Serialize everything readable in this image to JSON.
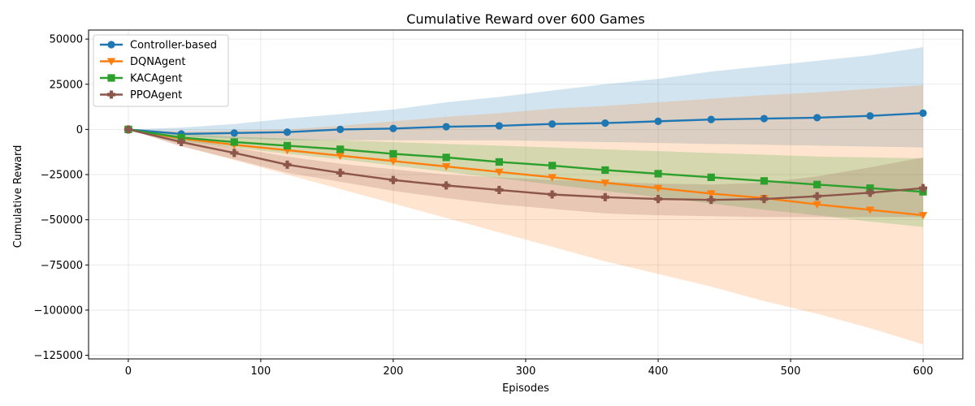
{
  "chart_data": {
    "type": "line",
    "title": "Cumulative Reward over 600 Games",
    "xlabel": "Episodes",
    "ylabel": "Cumulative Reward",
    "xlim": [
      -30,
      630
    ],
    "ylim": [
      -127000,
      55000
    ],
    "xticks": [
      0,
      100,
      200,
      300,
      400,
      500,
      600
    ],
    "xtick_labels": [
      "0",
      "100",
      "200",
      "300",
      "400",
      "500",
      "600"
    ],
    "yticks": [
      -125000,
      -100000,
      -75000,
      -50000,
      -25000,
      0,
      25000,
      50000
    ],
    "ytick_labels": [
      "−125000",
      "−100000",
      "−75000",
      "−50000",
      "−25000",
      "0",
      "25000",
      "50000"
    ],
    "grid": true,
    "legend_position": "top-left",
    "x": [
      0,
      40,
      80,
      120,
      160,
      200,
      240,
      280,
      320,
      360,
      400,
      440,
      480,
      520,
      560,
      600
    ],
    "series": [
      {
        "name": "Controller-based",
        "color": "#1f77b4",
        "marker": "circle",
        "values": [
          0,
          -2500,
          -2000,
          -1500,
          0,
          500,
          1500,
          2000,
          3000,
          3500,
          4500,
          5500,
          6000,
          6500,
          7500,
          9000
        ],
        "upper": [
          0,
          1000,
          3000,
          6000,
          8500,
          11000,
          15000,
          18000,
          21500,
          25000,
          28000,
          32000,
          35000,
          38000,
          41000,
          45500
        ],
        "lower": [
          0,
          -4000,
          -5000,
          -6000,
          -6000,
          -6000,
          -6000,
          -6000,
          -6500,
          -7000,
          -7500,
          -8000,
          -8500,
          -9000,
          -9500,
          -10000
        ]
      },
      {
        "name": "DQNAgent",
        "color": "#ff7f0e",
        "marker": "triangle-down",
        "values": [
          0,
          -5000,
          -8500,
          -11500,
          -14500,
          -17500,
          -20500,
          -23500,
          -26500,
          -29500,
          -32500,
          -35500,
          -38000,
          -41500,
          -44500,
          -47500
        ],
        "upper": [
          0,
          -1000,
          -500,
          0,
          2000,
          4500,
          7000,
          9000,
          11500,
          13000,
          15000,
          17000,
          19000,
          20500,
          22500,
          24500
        ],
        "lower": [
          0,
          -9000,
          -17000,
          -25000,
          -33000,
          -41000,
          -49000,
          -57000,
          -65000,
          -73000,
          -80000,
          -87000,
          -95000,
          -102000,
          -110000,
          -119000
        ]
      },
      {
        "name": "KACAgent",
        "color": "#2ca02c",
        "marker": "square",
        "values": [
          0,
          -4500,
          -7000,
          -9000,
          -11000,
          -13500,
          -15500,
          -18000,
          -20000,
          -22500,
          -24500,
          -26500,
          -28500,
          -30500,
          -32500,
          -34500
        ],
        "upper": [
          0,
          -2500,
          -4000,
          -5000,
          -6000,
          -7000,
          -8000,
          -9000,
          -10000,
          -11000,
          -12000,
          -13000,
          -14000,
          -15000,
          -15500,
          -16000
        ],
        "lower": [
          0,
          -6500,
          -10000,
          -13500,
          -16500,
          -20000,
          -23500,
          -27000,
          -30500,
          -34000,
          -37500,
          -41000,
          -44500,
          -47500,
          -51000,
          -54000
        ]
      },
      {
        "name": "PPOAgent",
        "color": "#8c564b",
        "marker": "plus",
        "values": [
          0,
          -7000,
          -13000,
          -19500,
          -24000,
          -28000,
          -31000,
          -33500,
          -36000,
          -37500,
          -38500,
          -39000,
          -38500,
          -37000,
          -35000,
          -32500
        ],
        "upper": [
          0,
          -4500,
          -10000,
          -15000,
          -19000,
          -22000,
          -25000,
          -26500,
          -28000,
          -29000,
          -30000,
          -30500,
          -29500,
          -26000,
          -21000,
          -15500
        ],
        "lower": [
          0,
          -9500,
          -16500,
          -24000,
          -29000,
          -34000,
          -38000,
          -41500,
          -44000,
          -46500,
          -47500,
          -48000,
          -48500,
          -48500,
          -48500,
          -48500
        ]
      }
    ]
  }
}
